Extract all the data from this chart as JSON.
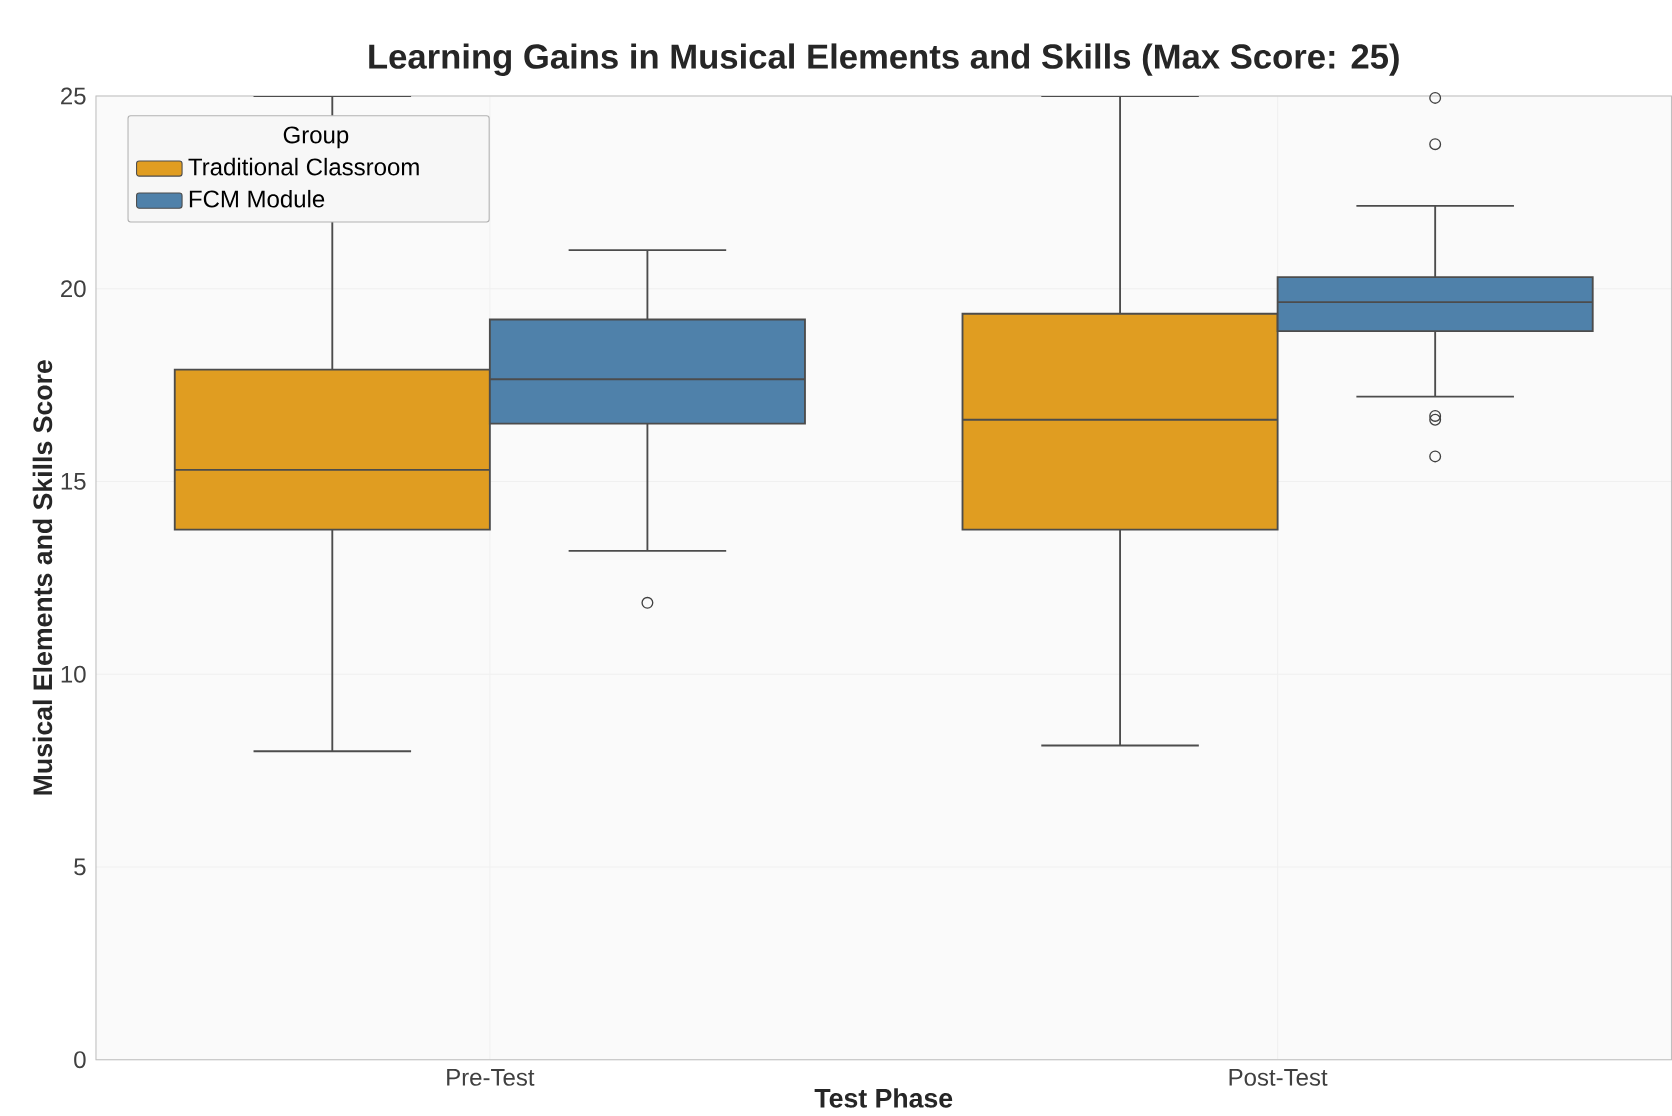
{
  "chart_data": {
    "type": "box",
    "title": "Learning Gains in Musical Elements and Skills (Max Score: 25)",
    "xlabel": "Test Phase",
    "ylabel": "Musical Elements and Skills Score",
    "legend_title": "Group",
    "categories": [
      "Pre-Test",
      "Post-Test"
    ],
    "series": [
      {
        "name": "Traditional Classroom",
        "color": "#e09d21",
        "boxes": [
          {
            "low": 8.0,
            "q1": 13.75,
            "median": 15.3,
            "q3": 17.9,
            "high": 25
          },
          {
            "low": 8.15,
            "q1": 13.75,
            "median": 16.6,
            "q3": 19.35,
            "high": 25
          }
        ]
      },
      {
        "name": "FCM Module",
        "color": "#4f81aa",
        "boxes": [
          {
            "low": 13.2,
            "q1": 16.5,
            "median": 17.65,
            "q3": 19.2,
            "high": 21.0,
            "outliers": [
              11.85
            ]
          },
          {
            "low": 17.2,
            "q1": 18.9,
            "median": 19.65,
            "q3": 20.3,
            "high": 22.15,
            "outliers": [
              24.95,
              23.75,
              16.7,
              16.6,
              15.65
            ]
          }
        ]
      }
    ],
    "ylim": [
      0,
      25
    ],
    "yticks": [
      0,
      5,
      10,
      15,
      20,
      25
    ],
    "grid": true,
    "legend": "top left"
  }
}
